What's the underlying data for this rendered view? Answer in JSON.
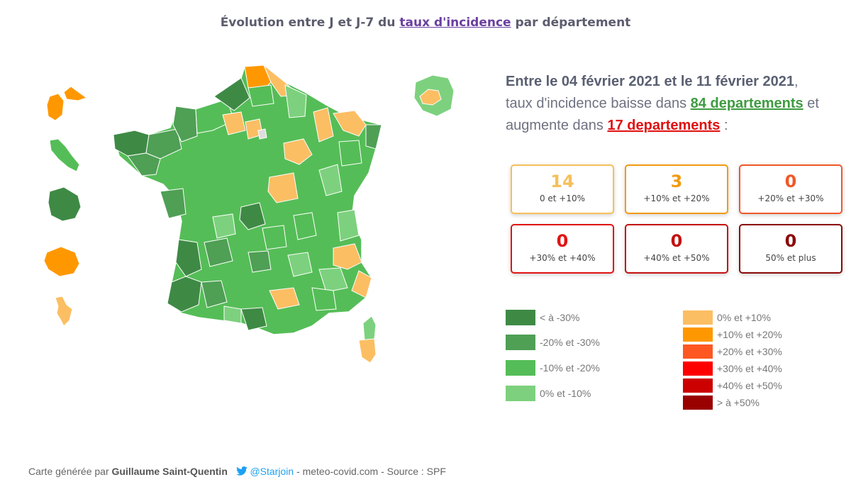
{
  "header": {
    "title_prefix": "Évolution entre J et J-7 du",
    "title_link": "taux d'incidence",
    "title_suffix": "par département"
  },
  "summary": {
    "line1_bold": "Entre le 04 février 2021 et le 11 février 2021",
    "line1_end": ",",
    "line2_prefix": "taux d'incidence baisse dans",
    "decrease_link": "84 departements",
    "line2_suffix": "et",
    "line3_prefix": "augmente dans",
    "increase_link": "17 departements",
    "line3_suffix": ":"
  },
  "cards": [
    {
      "count": "14",
      "range": "0 et +10%",
      "color": "#f6bf5b"
    },
    {
      "count": "3",
      "range": "+10% et +20%",
      "color": "#f39a12"
    },
    {
      "count": "0",
      "range": "+20% et +30%",
      "color": "#f0582a"
    },
    {
      "count": "0",
      "range": "+30% et +40%",
      "color": "#e01414"
    },
    {
      "count": "0",
      "range": "+40% et +50%",
      "color": "#c41111"
    },
    {
      "count": "0",
      "range": "50% et plus",
      "color": "#8b0a0a"
    }
  ],
  "legend_green": [
    {
      "label": "< à -30%",
      "color": "#3e8a45"
    },
    {
      "label": "-20% et -30%",
      "color": "#4f9f55"
    },
    {
      "label": "-10% et -20%",
      "color": "#55bd57"
    },
    {
      "label": "0% et -10%",
      "color": "#7dd17e"
    }
  ],
  "legend_red": [
    {
      "label": "0% et +10%",
      "color": "#fcbe63"
    },
    {
      "label": "+10% et +20%",
      "color": "#ff9800"
    },
    {
      "label": "+20% et +30%",
      "color": "#ff5722"
    },
    {
      "label": "+30% et +40%",
      "color": "#ff0000"
    },
    {
      "label": "+40% et +50%",
      "color": "#cc0000"
    },
    {
      "label": "> à +50%",
      "color": "#990000"
    }
  ],
  "footer": {
    "prefix": "Carte générée par",
    "author": "Guillaume Saint-Quentin",
    "twitter": "@Starjoin",
    "suffix": "- meteo-covid.com - Source : SPF"
  },
  "map": {
    "region": "France (métropole et outre-mer)",
    "colors": {
      "dark_green": "#3e8a45",
      "mid_green": "#4f9f55",
      "green": "#55bd57",
      "light_green": "#7dd17e",
      "light_orange": "#fcbe63",
      "orange": "#ff9800",
      "grey": "#dddddd"
    }
  }
}
